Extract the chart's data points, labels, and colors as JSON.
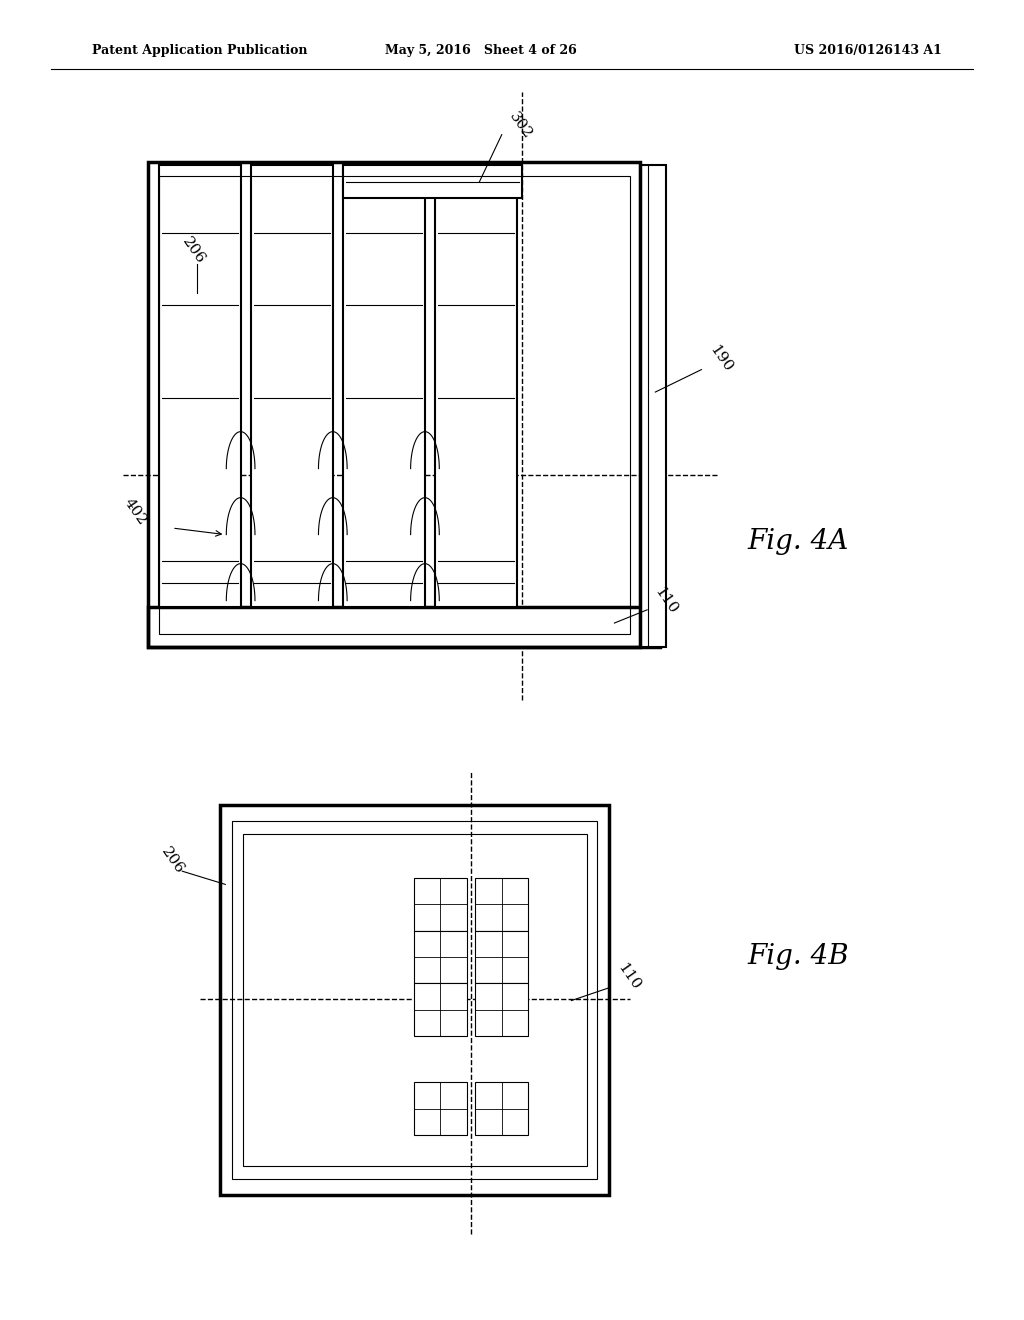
{
  "background_color": "#ffffff",
  "header_left": "Patent Application Publication",
  "header_mid": "May 5, 2016   Sheet 4 of 26",
  "header_right": "US 2016/0126143 A1",
  "fig4a_label": "Fig. 4A",
  "fig4b_label": "Fig. 4B",
  "lw_main": 1.5,
  "lw_thin": 0.8,
  "lw_thick": 2.5
}
